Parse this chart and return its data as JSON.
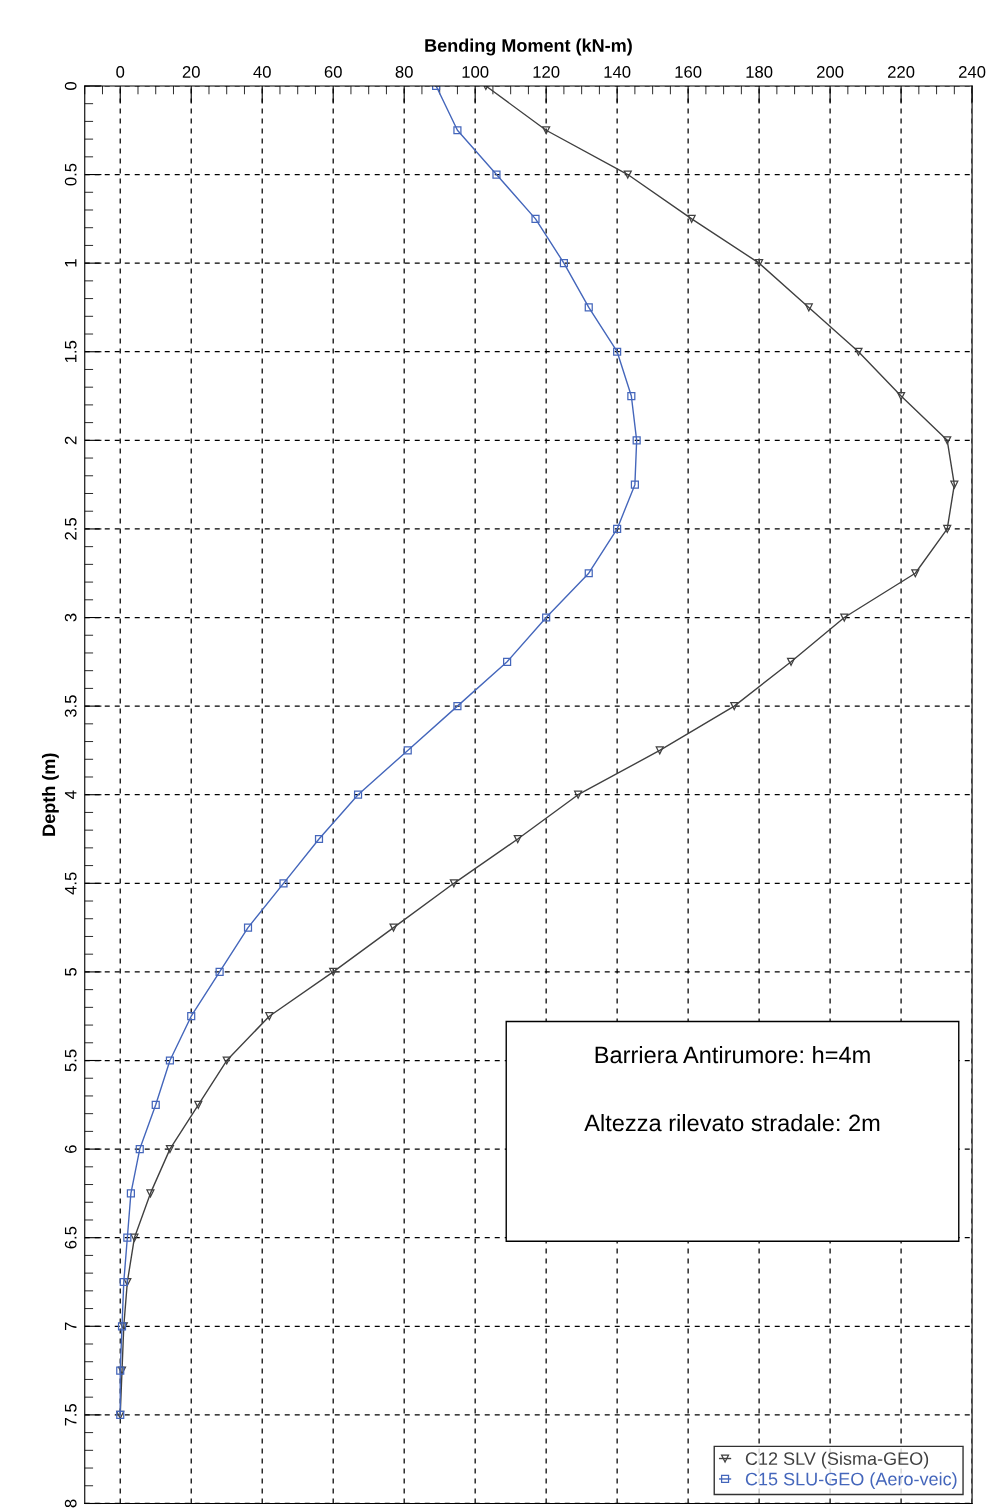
{
  "chart_data": {
    "type": "line",
    "xlabel": "Bending Moment (kN-m)",
    "ylabel": "Depth (m)",
    "xlim": [
      -10,
      240
    ],
    "xticks": [
      0,
      20,
      40,
      60,
      80,
      100,
      120,
      140,
      160,
      180,
      200,
      220,
      240
    ],
    "ylim": [
      8,
      0
    ],
    "yticks": [
      0,
      0.5,
      1,
      1.5,
      2,
      2.5,
      3,
      3.5,
      4,
      4.5,
      5,
      5.5,
      6,
      6.5,
      7,
      7.5,
      8
    ],
    "grid": true,
    "legend": "bottom right",
    "annotations": [
      "Barriera Antirumore: h=4m",
      "Altezza rilevato stradale: 2m"
    ],
    "series": [
      {
        "name": "C12 SLV (Sisma-GEO)",
        "color": "#404040",
        "marker": "triangle",
        "x": [
          103,
          120,
          143,
          161,
          180,
          194,
          208,
          220,
          233,
          235,
          233,
          224,
          204,
          189,
          173,
          152,
          129,
          112,
          94,
          77,
          60,
          42,
          30,
          22,
          14,
          8.5,
          4,
          2,
          1,
          0.5,
          0
        ],
        "values": [
          0,
          0.25,
          0.5,
          0.75,
          1,
          1.25,
          1.5,
          1.75,
          2,
          2.25,
          2.5,
          2.75,
          3,
          3.25,
          3.5,
          3.75,
          4,
          4.25,
          4.5,
          4.75,
          5,
          5.25,
          5.5,
          5.75,
          6,
          6.25,
          6.5,
          6.75,
          7,
          7.25,
          7.5
        ]
      },
      {
        "name": "C15 SLU-GEO (Aero-veic)",
        "color": "#4466bb",
        "marker": "square",
        "x": [
          89,
          95,
          106,
          117,
          125,
          132,
          140,
          144,
          145.5,
          145,
          140,
          132,
          120,
          109,
          95,
          81,
          67,
          56,
          46,
          36,
          28,
          20,
          14,
          10,
          5.5,
          3,
          2,
          1,
          0.5,
          0,
          0
        ],
        "values": [
          0,
          0.25,
          0.5,
          0.75,
          1,
          1.25,
          1.5,
          1.75,
          2,
          2.25,
          2.5,
          2.75,
          3,
          3.25,
          3.5,
          3.75,
          4,
          4.25,
          4.5,
          4.75,
          5,
          5.25,
          5.5,
          5.75,
          6,
          6.25,
          6.5,
          6.75,
          7,
          7.25,
          7.5
        ]
      }
    ]
  }
}
